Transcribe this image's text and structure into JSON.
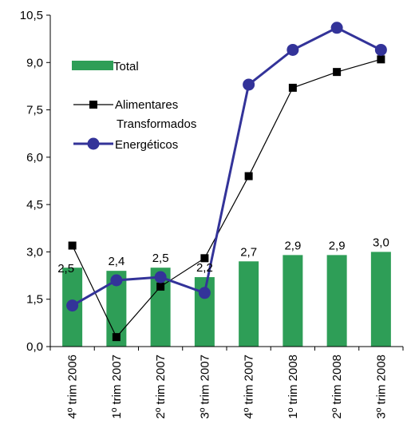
{
  "chart_data": {
    "type": "bar",
    "title": "",
    "xlabel": "",
    "ylabel": "",
    "categories": [
      "4º trim 2006",
      "1º trim 2007",
      "2º trim 2007",
      "3º trim 2007",
      "4º trim 2007",
      "1º trim 2008",
      "2º trim 2008",
      "3º trim 2008"
    ],
    "ylim": [
      0.0,
      10.5
    ],
    "yticks": [
      "0,0",
      "1,5",
      "3,0",
      "4,5",
      "6,0",
      "7,5",
      "9,0",
      "10,5"
    ],
    "grid": false,
    "legend_position": "upper-left",
    "series": [
      {
        "name": "Total",
        "kind": "bar",
        "color": "#2e9e57",
        "values": [
          2.5,
          2.4,
          2.5,
          2.2,
          2.7,
          2.9,
          2.9,
          3.0
        ],
        "labels": [
          "2,5",
          "2,4",
          "2,5",
          "2,2",
          "2,7",
          "2,9",
          "2,9",
          "3,0"
        ]
      },
      {
        "name": "Alimentares Transformados",
        "legend_lines": [
          "Alimentares",
          "Transformados"
        ],
        "kind": "line",
        "marker": "square",
        "color": "#000000",
        "values": [
          3.2,
          0.3,
          1.9,
          2.8,
          5.4,
          8.2,
          8.7,
          9.1
        ]
      },
      {
        "name": "Energéticos",
        "kind": "line",
        "marker": "circle",
        "color": "#333399",
        "values": [
          1.3,
          2.1,
          2.2,
          1.7,
          8.3,
          9.4,
          10.1,
          9.4
        ]
      }
    ]
  }
}
